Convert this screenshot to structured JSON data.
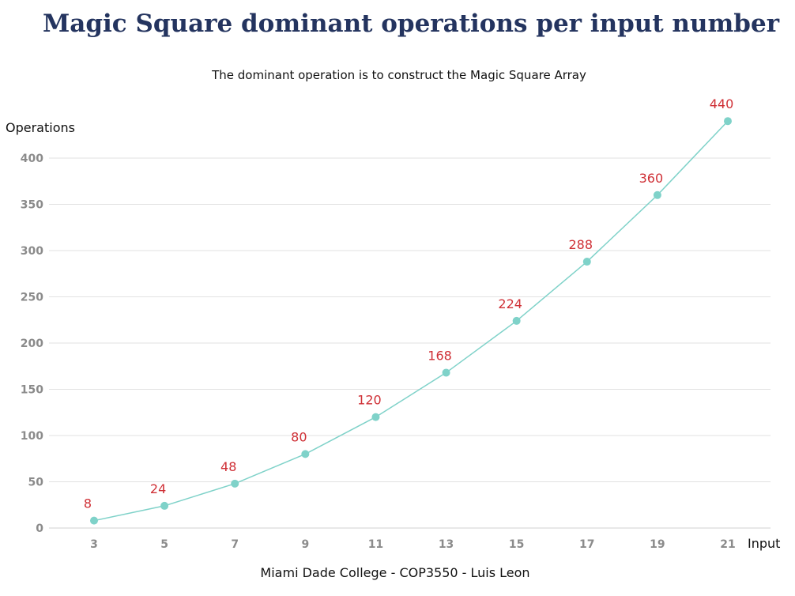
{
  "chart_data": {
    "type": "line",
    "title": "Magic Square dominant operations per input number",
    "subtitle": "The dominant operation is to construct the Magic Square Array",
    "xlabel": "Input",
    "ylabel": "Operations",
    "footer": "Miami Dade College - COP3550 - Luis Leon",
    "x": [
      3,
      5,
      7,
      9,
      11,
      13,
      15,
      17,
      19,
      21
    ],
    "series": [
      {
        "values": [
          8,
          24,
          48,
          80,
          120,
          168,
          224,
          288,
          360,
          440
        ],
        "color": "#7fd2c9"
      }
    ],
    "data_labels": [
      "8",
      "24",
      "48",
      "80",
      "120",
      "168",
      "224",
      "288",
      "360",
      "440"
    ],
    "ylim": [
      0,
      400
    ],
    "y_ticks": [
      "0",
      "50",
      "100",
      "150",
      "200",
      "250",
      "300",
      "350",
      "400"
    ],
    "x_ticks": [
      "3",
      "5",
      "7",
      "9",
      "11",
      "13",
      "15",
      "17",
      "19",
      "21"
    ],
    "grid": true,
    "label_color": "#cf2f35"
  }
}
